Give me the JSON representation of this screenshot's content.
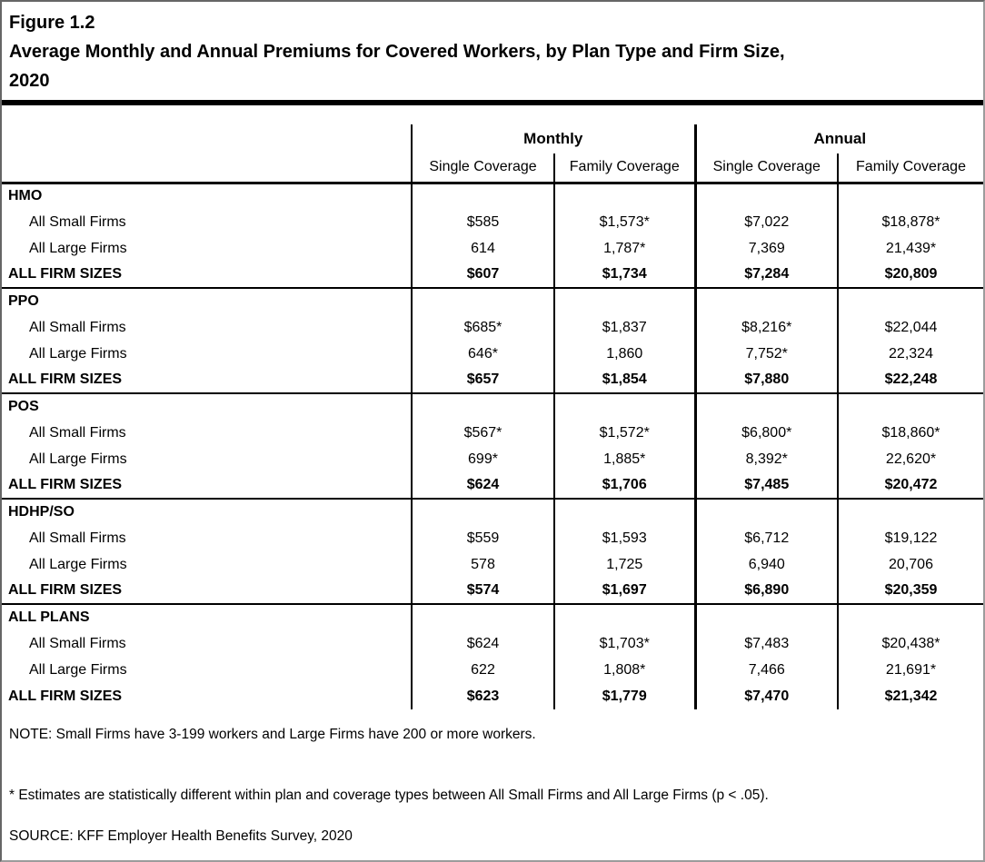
{
  "figure": {
    "label": "Figure 1.2",
    "title": "Average Monthly and Annual Premiums for Covered Workers, by Plan Type and Firm Size, 2020",
    "title_line1": "Average Monthly and Annual Premiums for Covered Workers, by Plan Type and Firm Size,",
    "title_line2": "2020"
  },
  "table": {
    "group_headers": {
      "monthly": "Monthly",
      "annual": "Annual"
    },
    "sub_headers": [
      "Single Coverage",
      "Family Coverage",
      "Single Coverage",
      "Family Coverage"
    ],
    "sections": [
      {
        "plan": "HMO",
        "rows": [
          {
            "label": "All Small Firms",
            "bold": false,
            "values": [
              "$585",
              "$1,573*",
              "$7,022",
              "$18,878*"
            ]
          },
          {
            "label": "All Large Firms",
            "bold": false,
            "values": [
              "614",
              "1,787*",
              "7,369",
              "21,439*"
            ]
          },
          {
            "label": "ALL FIRM SIZES",
            "bold": true,
            "values": [
              "$607",
              "$1,734",
              "$7,284",
              "$20,809"
            ]
          }
        ]
      },
      {
        "plan": "PPO",
        "rows": [
          {
            "label": "All Small Firms",
            "bold": false,
            "values": [
              "$685*",
              "$1,837",
              "$8,216*",
              "$22,044"
            ]
          },
          {
            "label": "All Large Firms",
            "bold": false,
            "values": [
              "646*",
              "1,860",
              "7,752*",
              "22,324"
            ]
          },
          {
            "label": "ALL FIRM SIZES",
            "bold": true,
            "values": [
              "$657",
              "$1,854",
              "$7,880",
              "$22,248"
            ]
          }
        ]
      },
      {
        "plan": "POS",
        "rows": [
          {
            "label": "All Small Firms",
            "bold": false,
            "values": [
              "$567*",
              "$1,572*",
              "$6,800*",
              "$18,860*"
            ]
          },
          {
            "label": "All Large Firms",
            "bold": false,
            "values": [
              "699*",
              "1,885*",
              "8,392*",
              "22,620*"
            ]
          },
          {
            "label": "ALL FIRM SIZES",
            "bold": true,
            "values": [
              "$624",
              "$1,706",
              "$7,485",
              "$20,472"
            ]
          }
        ]
      },
      {
        "plan": "HDHP/SO",
        "rows": [
          {
            "label": "All Small Firms",
            "bold": false,
            "values": [
              "$559",
              "$1,593",
              "$6,712",
              "$19,122"
            ]
          },
          {
            "label": "All Large Firms",
            "bold": false,
            "values": [
              "578",
              "1,725",
              "6,940",
              "20,706"
            ]
          },
          {
            "label": "ALL FIRM SIZES",
            "bold": true,
            "values": [
              "$574",
              "$1,697",
              "$6,890",
              "$20,359"
            ]
          }
        ]
      },
      {
        "plan": "ALL PLANS",
        "rows": [
          {
            "label": "All Small Firms",
            "bold": false,
            "values": [
              "$624",
              "$1,703*",
              "$7,483",
              "$20,438*"
            ]
          },
          {
            "label": "All Large Firms",
            "bold": false,
            "values": [
              "622",
              "1,808*",
              "7,466",
              "21,691*"
            ]
          },
          {
            "label": "ALL FIRM SIZES",
            "bold": true,
            "values": [
              "$623",
              "$1,779",
              "$7,470",
              "$21,342"
            ]
          }
        ]
      }
    ]
  },
  "notes": {
    "note": "NOTE: Small Firms have 3-199 workers and Large Firms have 200 or more workers.",
    "asterisk": "* Estimates are statistically different within plan and coverage types between All Small Firms and All Large Firms (p < .05).",
    "source": "SOURCE: KFF Employer Health Benefits Survey, 2020"
  }
}
